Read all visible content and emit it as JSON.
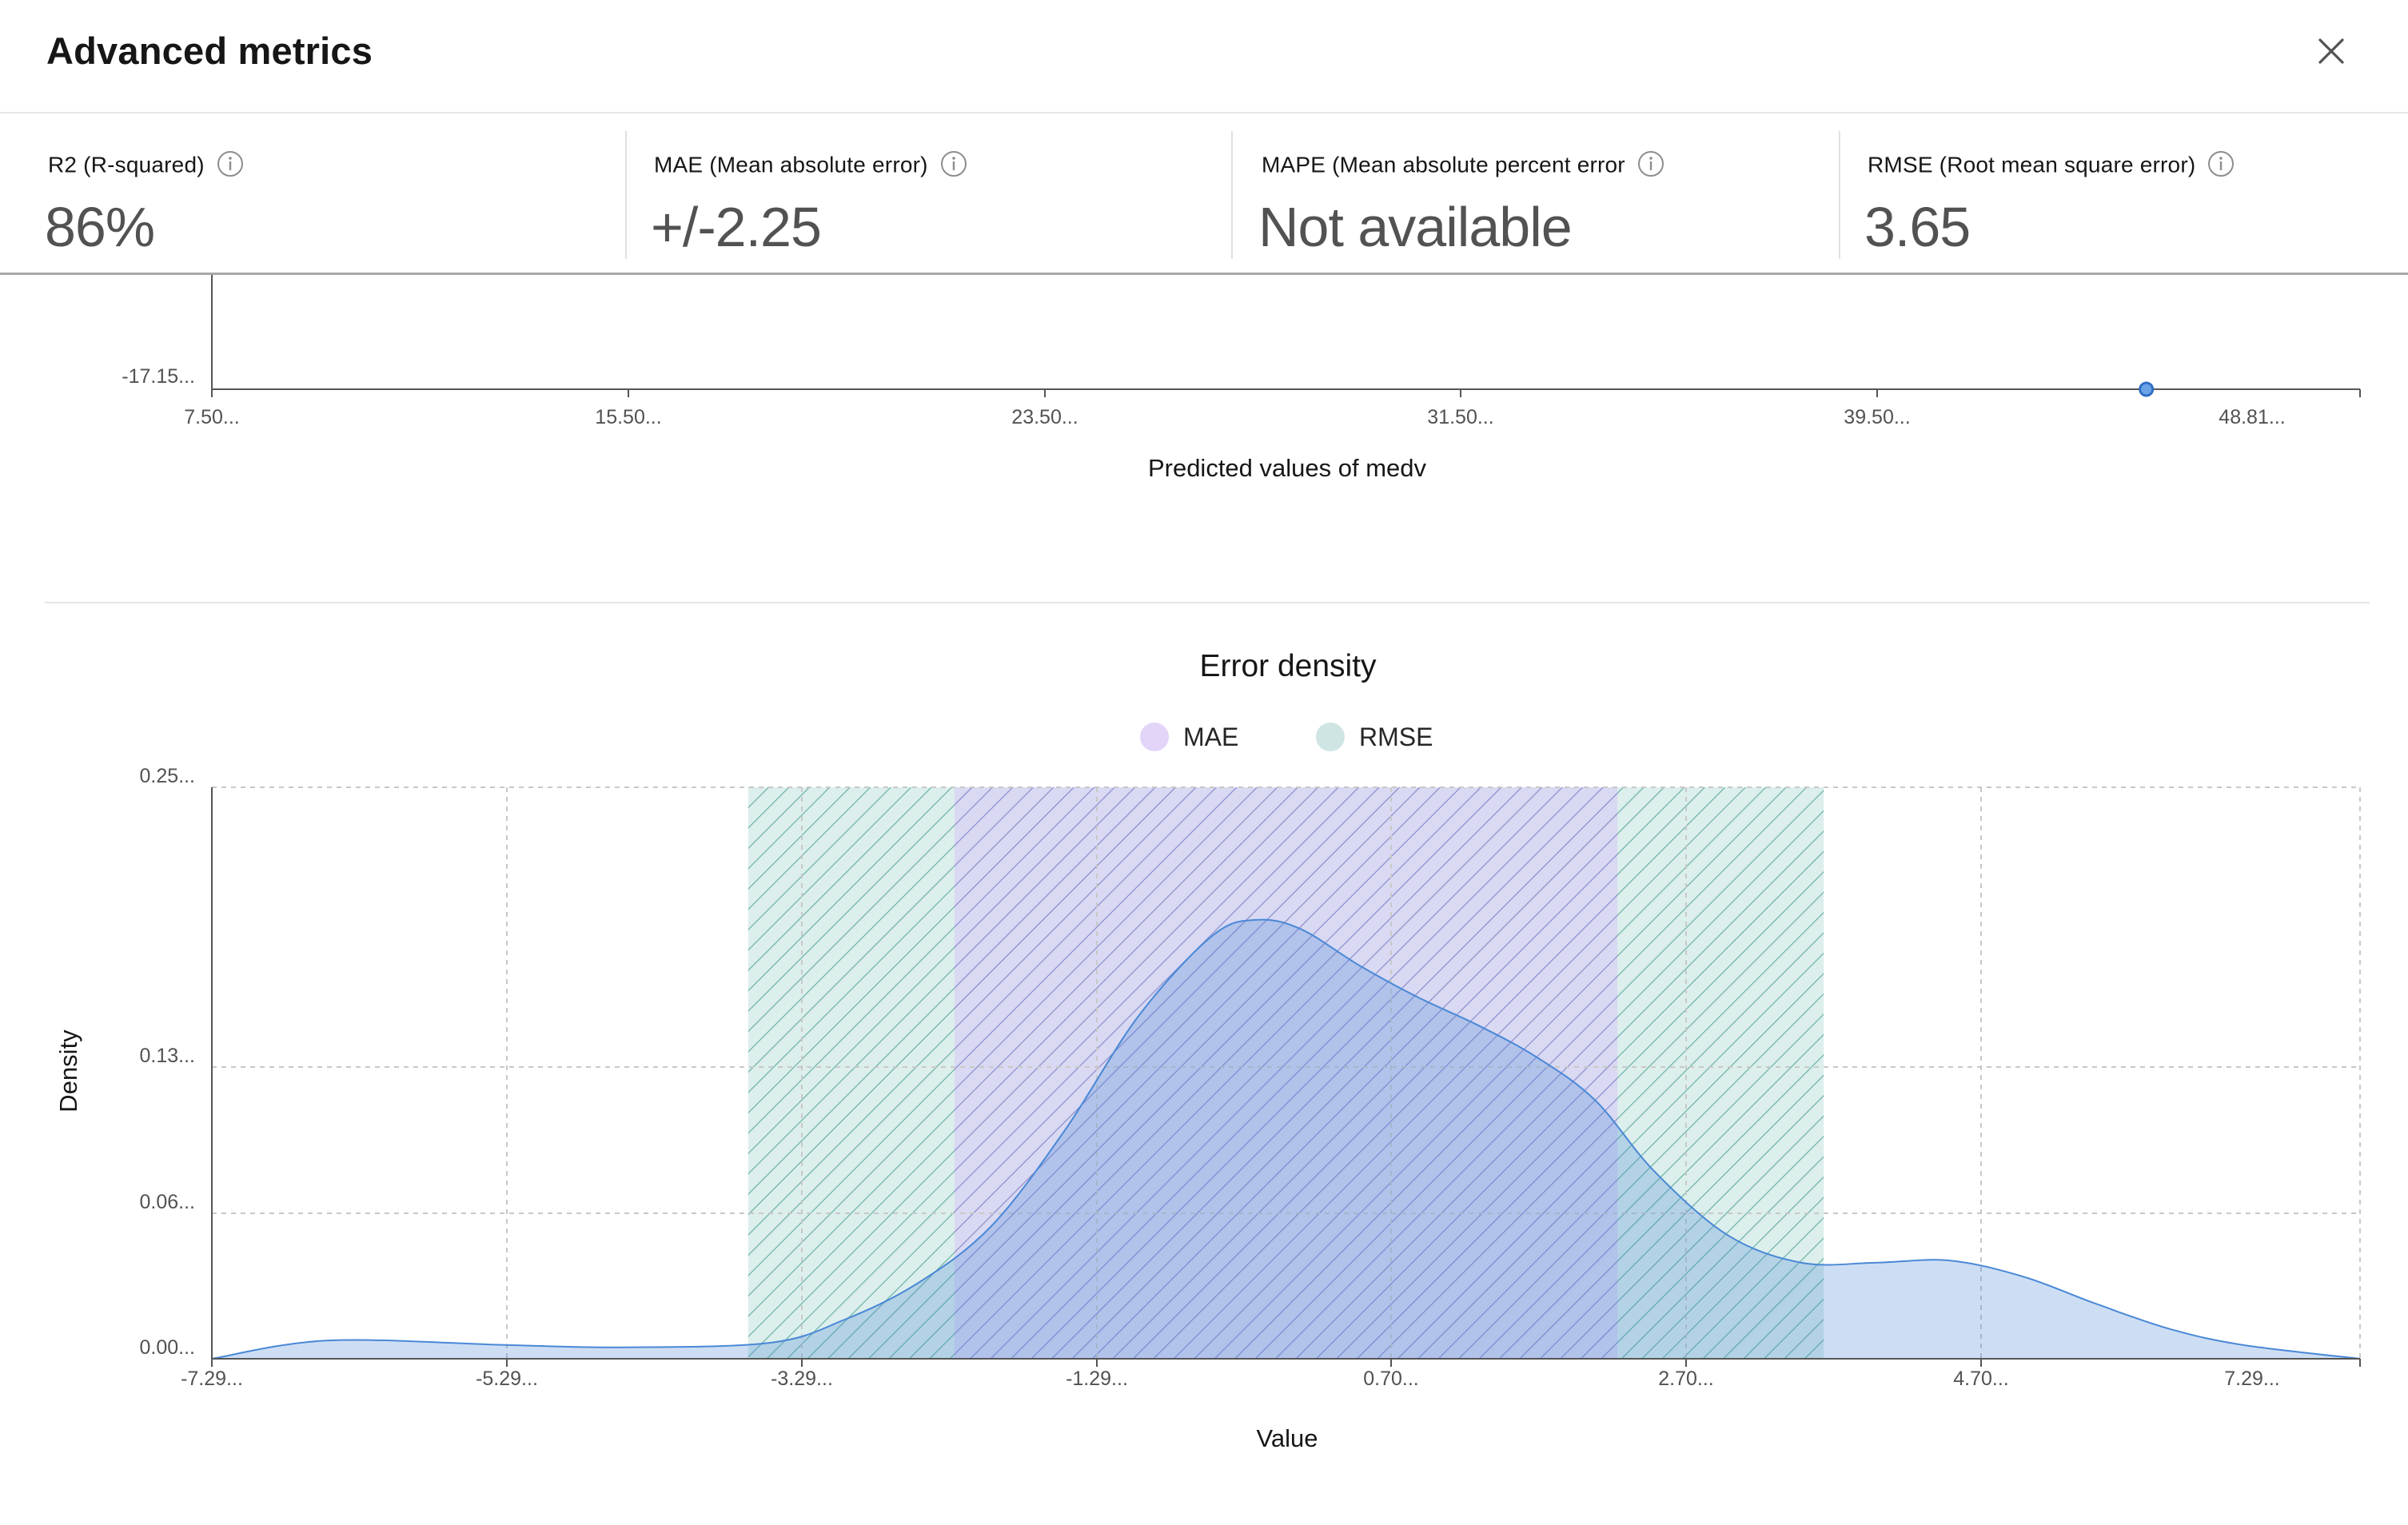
{
  "header": {
    "title": "Advanced metrics",
    "close_icon": "close-icon"
  },
  "metrics": [
    {
      "label": "R2 (R-squared)",
      "value": "86%"
    },
    {
      "label": "MAE (Mean absolute error)",
      "value": "+/-2.25"
    },
    {
      "label": "MAPE (Mean absolute percent error",
      "value": "Not available"
    },
    {
      "label": "RMSE (Root mean square error)",
      "value": "3.65"
    }
  ],
  "colors": {
    "accent_blue": "#4a88d6",
    "mae": "#e2d5f8",
    "rmse": "#cfe5e3"
  },
  "chart_data": [
    {
      "type": "scatter",
      "title": "",
      "xlabel": "Predicted values of medv",
      "ylabel": "",
      "x_ticks": [
        "7.50...",
        "15.50...",
        "23.50...",
        "31.50...",
        "39.50...",
        "48.81..."
      ],
      "y_ticks": [
        "-17.15..."
      ],
      "xlim": [
        7.5,
        48.81
      ],
      "points": [
        {
          "x": 44.7,
          "y": -17.15
        }
      ]
    },
    {
      "type": "area",
      "title": "Error density",
      "xlabel": "Value",
      "ylabel": "Density",
      "x_ticks": [
        "-7.29...",
        "-5.29...",
        "-3.29...",
        "-1.29...",
        "0.70...",
        "2.70...",
        "4.70...",
        "7.29..."
      ],
      "y_ticks": [
        "0.00...",
        "0.06...",
        "0.13...",
        "0.25..."
      ],
      "xlim": [
        -7.29,
        7.29
      ],
      "ylim": [
        0,
        0.25
      ],
      "grid": true,
      "legend": [
        "MAE",
        "RMSE"
      ],
      "bands": [
        {
          "name": "MAE",
          "from": -2.25,
          "to": 2.25
        },
        {
          "name": "RMSE",
          "from": -3.65,
          "to": 3.65
        }
      ],
      "series": [
        {
          "x": [
            -7.29,
            -6.5,
            -5.29,
            -4.5,
            -3.5,
            -3.0,
            -2.5,
            -2.0,
            -1.5,
            -1.0,
            -0.5,
            -0.2,
            0.1,
            0.5,
            0.9,
            1.3,
            1.7,
            2.1,
            2.5,
            3.0,
            3.5,
            4.0,
            4.5,
            5.0,
            5.5,
            6.0,
            6.5,
            7.29
          ],
          "values": [
            0.0,
            0.008,
            0.006,
            0.005,
            0.007,
            0.017,
            0.033,
            0.058,
            0.1,
            0.15,
            0.185,
            0.192,
            0.188,
            0.172,
            0.158,
            0.146,
            0.132,
            0.113,
            0.082,
            0.054,
            0.042,
            0.042,
            0.043,
            0.036,
            0.024,
            0.013,
            0.006,
            0.0
          ]
        }
      ]
    }
  ]
}
